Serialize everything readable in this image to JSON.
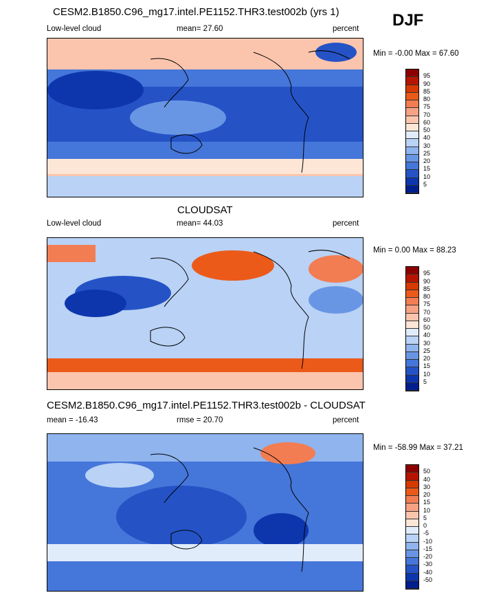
{
  "season": "DJF",
  "panels": [
    {
      "title": "CESM2.B1850.C96_mg17.intel.PE1152.THR3.test002b (yrs 1)",
      "left_label": "Low-level cloud",
      "center_label": "mean=  27.60",
      "right_label": "percent",
      "minmax": "Min =  -0.00 Max =  67.60"
    },
    {
      "title": "CLOUDSAT",
      "left_label": "Low-level cloud",
      "center_label": "mean=  44.03",
      "right_label": "percent",
      "minmax": "Min =   0.00 Max =  88.23"
    },
    {
      "title": "CESM2.B1850.C96_mg17.intel.PE1152.THR3.test002b - CLOUDSAT",
      "left_label": "mean = -16.43",
      "center_label": "rmse =  20.70",
      "right_label": "percent",
      "minmax": "Min = -58.99 Max =  37.21"
    }
  ],
  "chart_data": [
    {
      "type": "heatmap",
      "title": "CESM2.B1850.C96_mg17.intel.PE1152.THR3.test002b (yrs 1)",
      "variable": "Low-level cloud",
      "units": "percent",
      "mean": 27.6,
      "min": -0.0,
      "max": 67.6,
      "levels": [
        "95",
        "90",
        "85",
        "80",
        "75",
        "70",
        "60",
        "50",
        "40",
        "30",
        "25",
        "20",
        "15",
        "10",
        "5"
      ],
      "colors": [
        "#8b0000",
        "#b51500",
        "#d63a00",
        "#ec5a1a",
        "#f27d52",
        "#f7a284",
        "#fbc5ad",
        "#fde6d6",
        "#e1ecfb",
        "#b9d2f5",
        "#8fb4ee",
        "#6996e4",
        "#4576d9",
        "#2553c6",
        "#0d36ad",
        "#001e8c"
      ]
    },
    {
      "type": "heatmap",
      "title": "CLOUDSAT",
      "variable": "Low-level cloud",
      "units": "percent",
      "mean": 44.03,
      "min": 0.0,
      "max": 88.23,
      "levels": [
        "95",
        "90",
        "85",
        "80",
        "75",
        "70",
        "60",
        "50",
        "40",
        "30",
        "25",
        "20",
        "15",
        "10",
        "5"
      ],
      "colors": [
        "#8b0000",
        "#b51500",
        "#d63a00",
        "#ec5a1a",
        "#f27d52",
        "#f7a284",
        "#fbc5ad",
        "#fde6d6",
        "#e1ecfb",
        "#b9d2f5",
        "#8fb4ee",
        "#6996e4",
        "#4576d9",
        "#2553c6",
        "#0d36ad",
        "#001e8c"
      ]
    },
    {
      "type": "heatmap",
      "title": "CESM2.B1850.C96_mg17.intel.PE1152.THR3.test002b - CLOUDSAT",
      "units": "percent",
      "mean": -16.43,
      "rmse": 20.7,
      "min": -58.99,
      "max": 37.21,
      "levels": [
        "50",
        "40",
        "30",
        "20",
        "15",
        "10",
        "5",
        "0",
        "-5",
        "-10",
        "-15",
        "-20",
        "-30",
        "-40",
        "-50"
      ],
      "colors": [
        "#8b0000",
        "#b51500",
        "#d63a00",
        "#ec5a1a",
        "#f27d52",
        "#f7a284",
        "#fbc5ad",
        "#fde6d6",
        "#e1ecfb",
        "#b9d2f5",
        "#8fb4ee",
        "#6996e4",
        "#4576d9",
        "#2553c6",
        "#0d36ad",
        "#001e8c"
      ]
    }
  ]
}
